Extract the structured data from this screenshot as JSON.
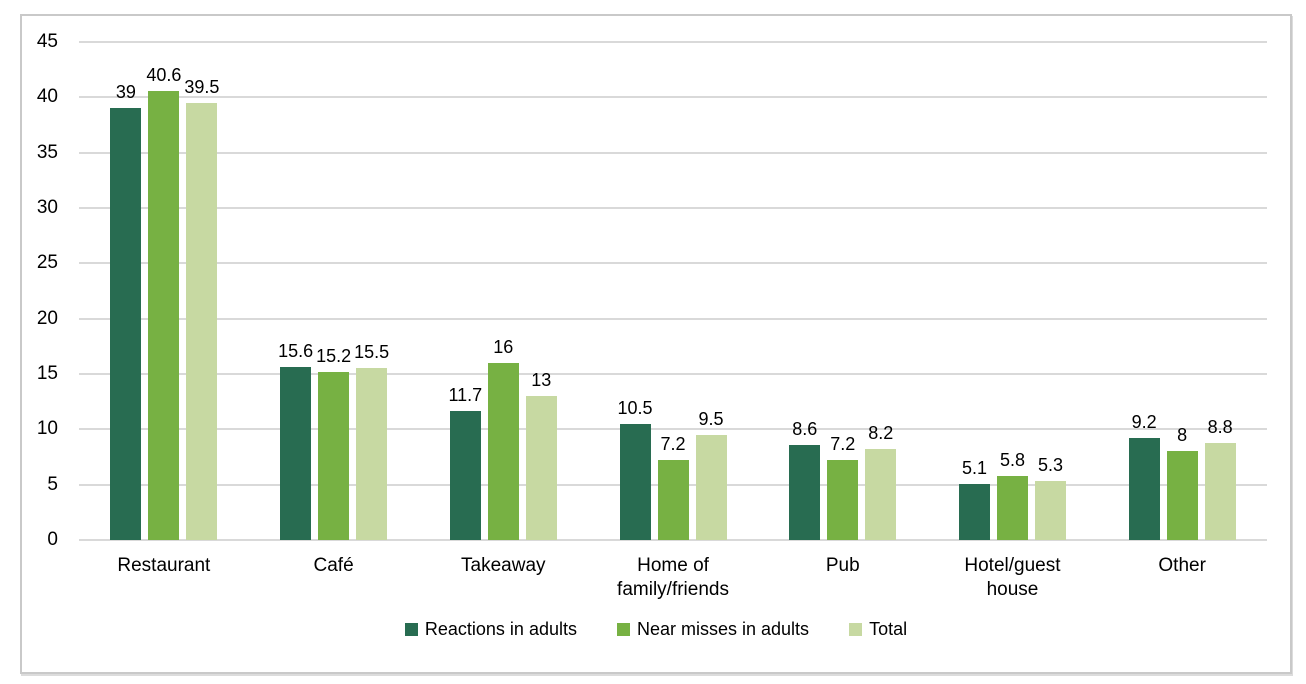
{
  "chart_data": {
    "type": "bar",
    "title": "",
    "xlabel": "",
    "ylabel": "",
    "categories": [
      "Restaurant",
      "Café",
      "Takeaway",
      "Home of\nfamily/friends",
      "Pub",
      "Hotel/guest\nhouse",
      "Other"
    ],
    "series": [
      {
        "name": "Reactions in adults",
        "color": "#286c51",
        "values": [
          39,
          15.6,
          11.7,
          10.5,
          8.6,
          5.1,
          9.2
        ],
        "labels": [
          "39",
          "15.6",
          "11.7",
          "10.5",
          "8.6",
          "5.1",
          "9.2"
        ]
      },
      {
        "name": "Near misses in adults",
        "color": "#77b143",
        "values": [
          40.6,
          15.2,
          16,
          7.2,
          7.2,
          5.8,
          8
        ],
        "labels": [
          "40.6",
          "15.2",
          "16",
          "7.2",
          "7.2",
          "5.8",
          "8"
        ]
      },
      {
        "name": "Total",
        "color": "#c7d9a2",
        "values": [
          39.5,
          15.5,
          13,
          9.5,
          8.2,
          5.3,
          8.8
        ],
        "labels": [
          "39.5",
          "15.5",
          "13",
          "9.5",
          "8.2",
          "5.3",
          "8.8"
        ]
      }
    ],
    "ylim": [
      0,
      45
    ],
    "ytick_step": 5,
    "ytick_labels": [
      "0",
      "5",
      "10",
      "15",
      "20",
      "25",
      "30",
      "35",
      "40",
      "45"
    ],
    "grid": true,
    "legend_position": "bottom"
  },
  "style": {
    "grid_color": "#d9d9d9",
    "frame_border_color": "#c9c9c9",
    "text_color": "#000000",
    "background": "#ffffff"
  }
}
